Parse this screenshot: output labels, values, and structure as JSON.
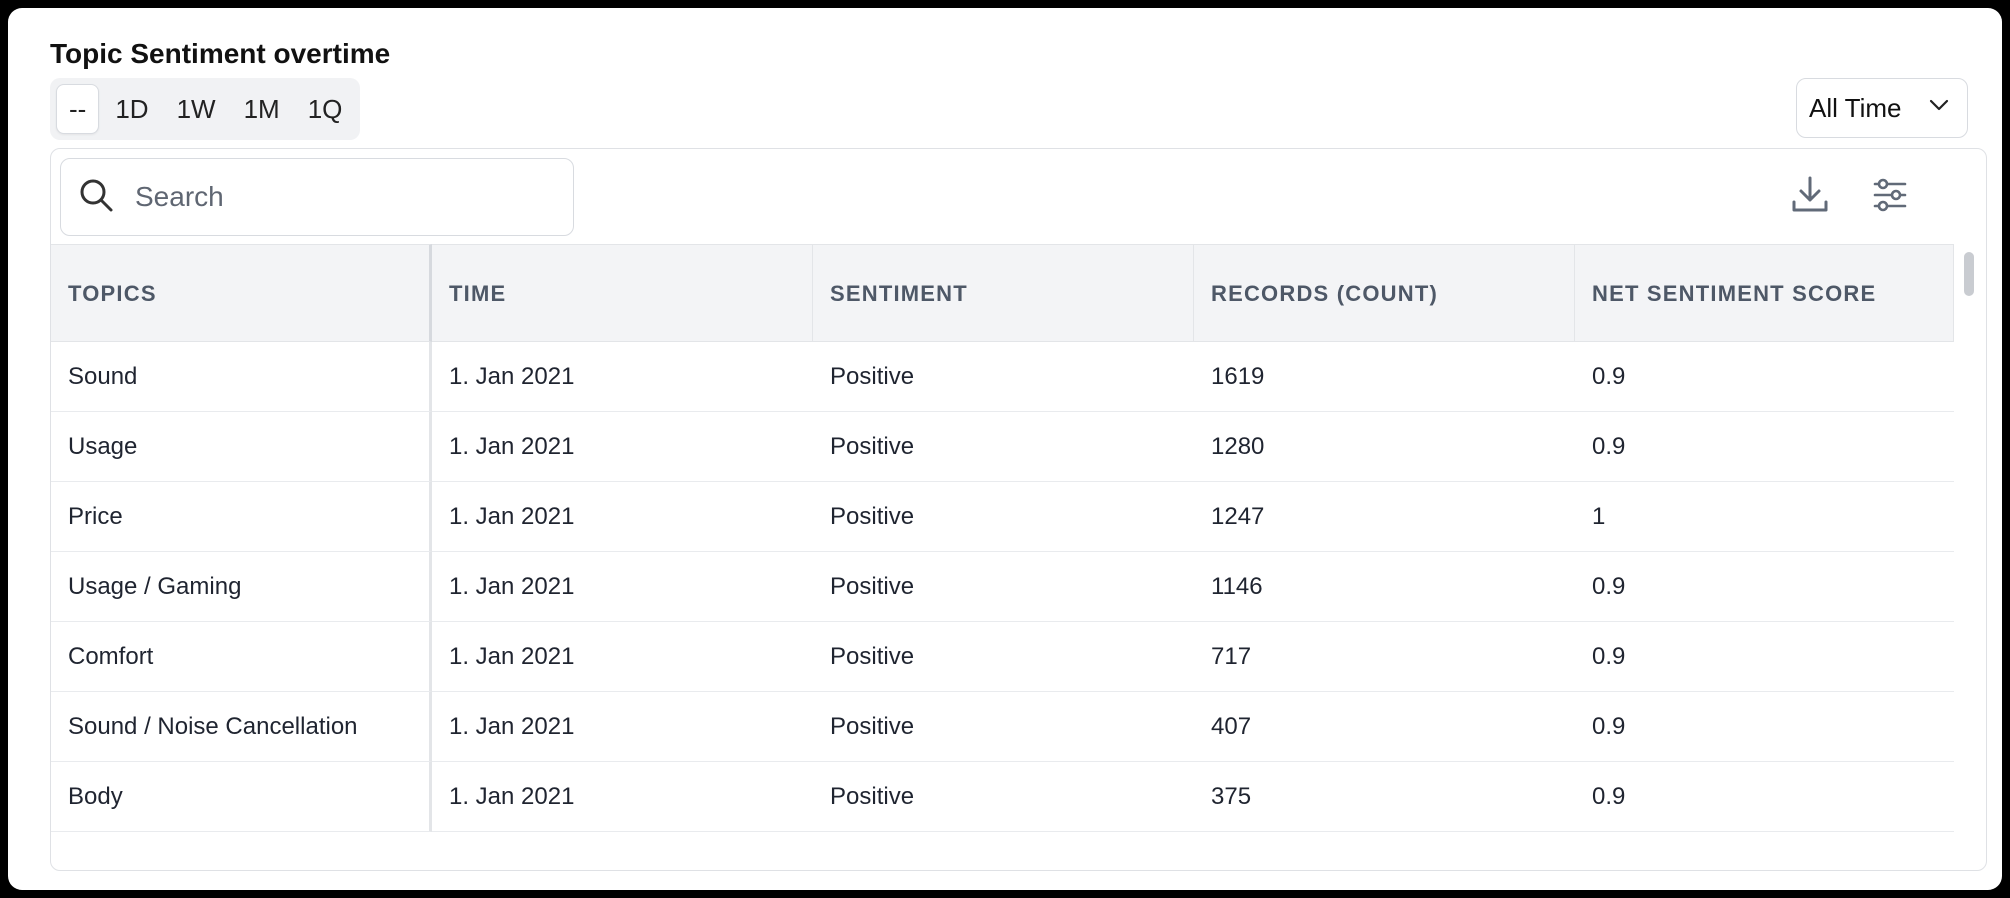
{
  "header": {
    "title": "Topic Sentiment overtime",
    "range_tabs": [
      "--",
      "1D",
      "1W",
      "1M",
      "1Q"
    ],
    "active_range": "--",
    "period_select": "All Time"
  },
  "toolbar": {
    "search_placeholder": "Search",
    "icons": [
      "search-icon",
      "download-icon",
      "sliders-icon"
    ]
  },
  "table": {
    "columns": [
      "TOPICS",
      "TIME",
      "SENTIMENT",
      "RECORDS (COUNT)",
      "NET SENTIMENT SCORE"
    ],
    "rows": [
      [
        "Sound",
        "1. Jan 2021",
        "Positive",
        "1619",
        "0.9"
      ],
      [
        "Usage",
        "1. Jan 2021",
        "Positive",
        "1280",
        "0.9"
      ],
      [
        "Price",
        "1. Jan 2021",
        "Positive",
        "1247",
        "1"
      ],
      [
        "Usage / Gaming",
        "1. Jan 2021",
        "Positive",
        "1146",
        "0.9"
      ],
      [
        "Comfort",
        "1. Jan 2021",
        "Positive",
        "717",
        "0.9"
      ],
      [
        "Sound / Noise Cancellation",
        "1. Jan 2021",
        "Positive",
        "407",
        "0.9"
      ],
      [
        "Body",
        "1. Jan 2021",
        "Positive",
        "375",
        "0.9"
      ]
    ]
  }
}
